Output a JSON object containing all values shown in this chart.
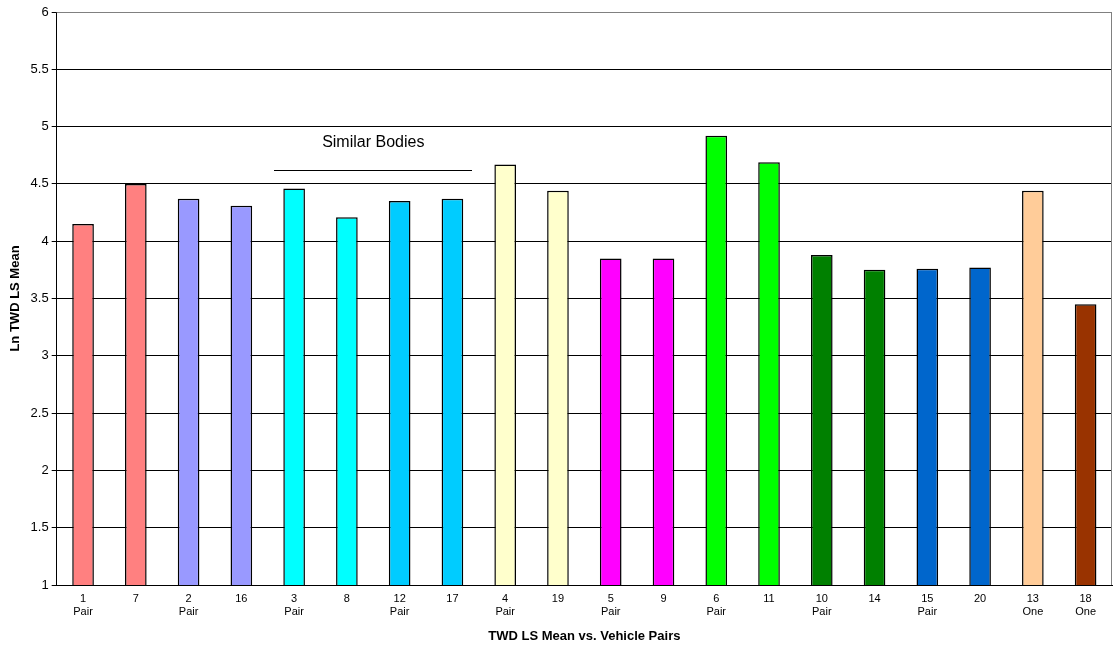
{
  "chart_data": {
    "type": "bar",
    "xlabel": "TWD LS Mean vs. Vehicle Pairs",
    "ylabel": "Ln TWD LS Mean",
    "categories": [
      "1\nPair",
      "7",
      "2\nPair",
      "16",
      "3\nPair",
      "8",
      "12\nPair",
      "17",
      "4\nPair",
      "19",
      "5\nPair",
      "9",
      "6\nPair",
      "11",
      "10\nPair",
      "14",
      "15\nPair",
      "20",
      "13\nOne",
      "18\nOne"
    ],
    "values": [
      4.15,
      4.5,
      4.37,
      4.31,
      4.46,
      4.21,
      4.35,
      4.37,
      4.67,
      4.44,
      3.85,
      3.85,
      4.92,
      4.69,
      3.88,
      3.75,
      3.76,
      3.77,
      4.44,
      3.45
    ],
    "colors": [
      "#ff8080",
      "#ff8080",
      "#9999ff",
      "#9999ff",
      "#00ffff",
      "#00ffff",
      "#00ccff",
      "#00ccff",
      "#ffffcc",
      "#ffffcc",
      "#ff00ff",
      "#ff00ff",
      "#00ff00",
      "#00ff00",
      "#008000",
      "#008000",
      "#0066cc",
      "#0066cc",
      "#ffcc99",
      "#993300"
    ],
    "ylim": [
      1,
      6
    ],
    "yticks": [
      1,
      1.5,
      2,
      2.5,
      3,
      3.5,
      4,
      4.5,
      5,
      5.5,
      6
    ],
    "grid": "y",
    "legend": false,
    "annotations": [
      "Similar Bodies"
    ]
  }
}
